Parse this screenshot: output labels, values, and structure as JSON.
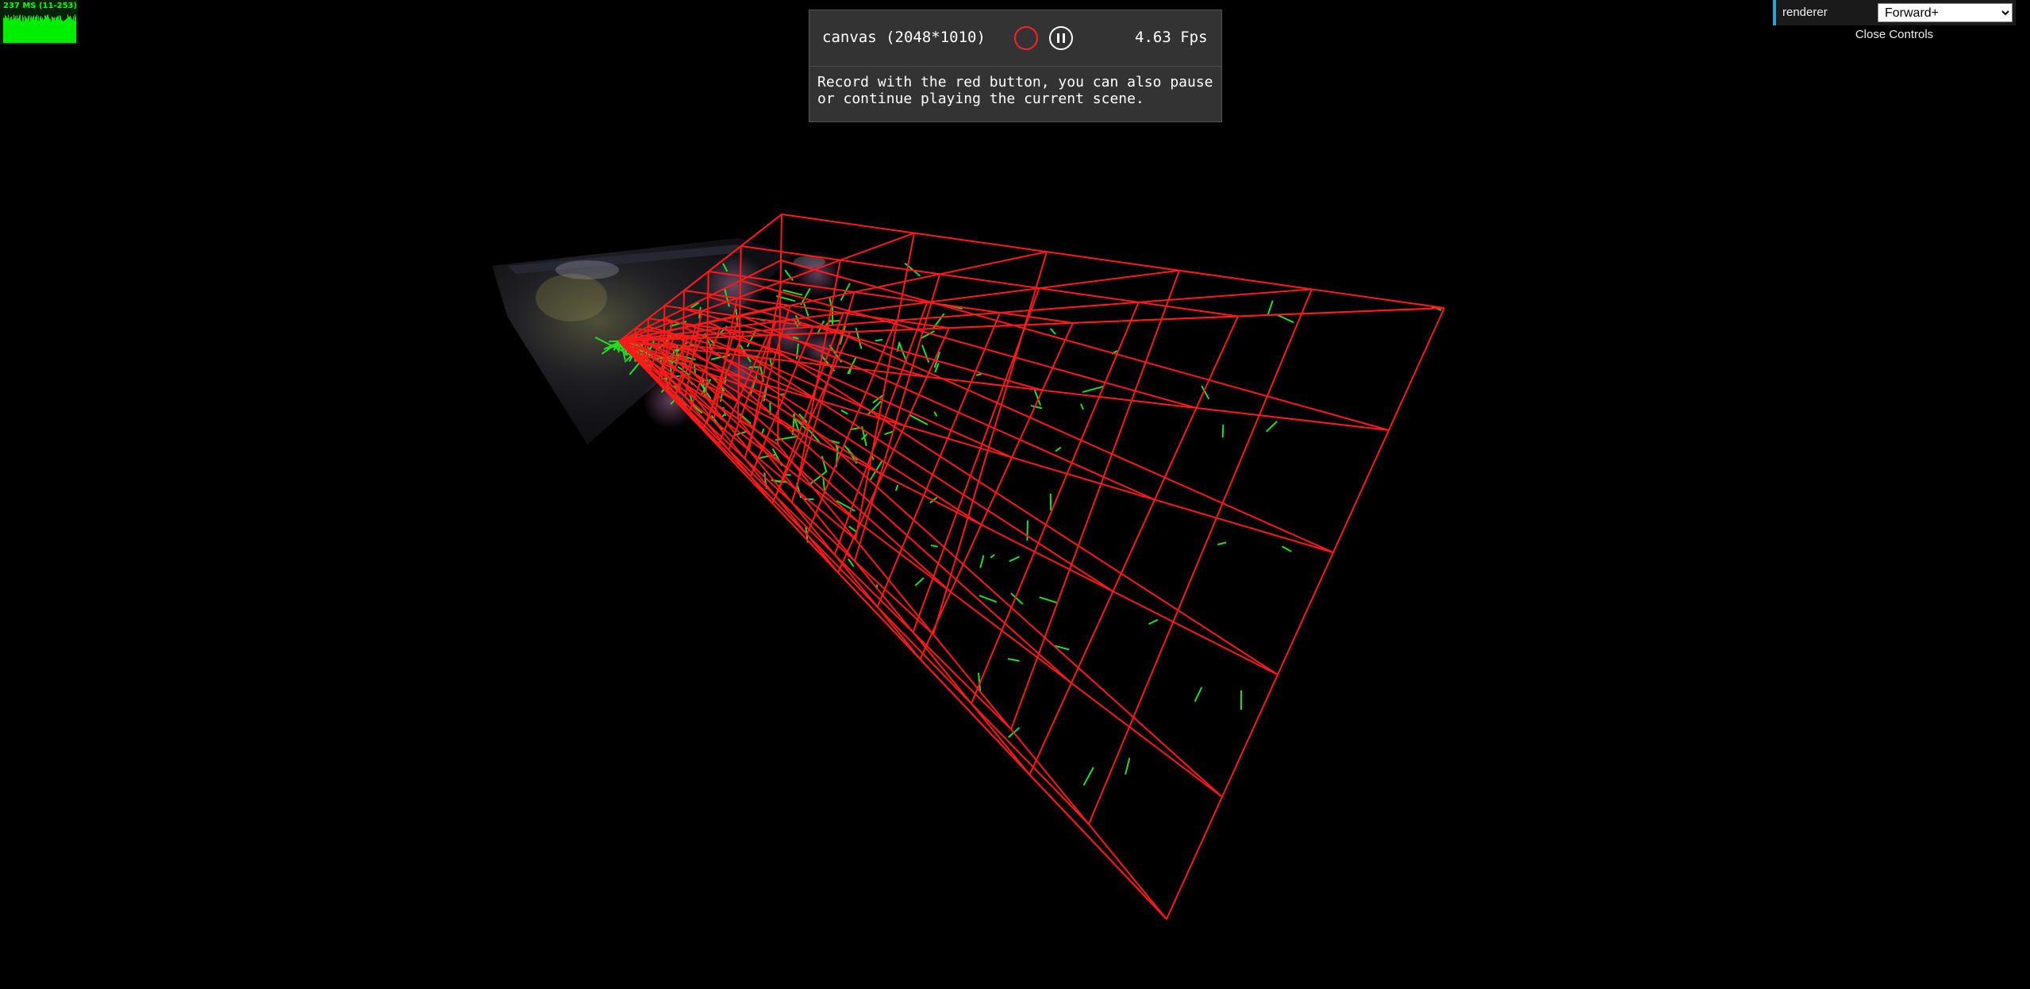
{
  "stats": {
    "text": "237 MS (11-253)",
    "graph_color": "#00ff00",
    "background_color": "#002200"
  },
  "recorder": {
    "canvas_info": "canvas (2048*1010)",
    "fps": "4.63 Fps",
    "description": "Record with the red button, you can also pause or continue playing the current scene.",
    "record_icon": "record-circle-icon",
    "pause_icon": "pause-icon",
    "record_color": "#ff2222"
  },
  "controls": {
    "renderer_label": "renderer",
    "renderer_value": "Forward+",
    "renderer_options": [
      "Forward+"
    ],
    "close_label": "Close Controls"
  },
  "scene": {
    "background_color": "#000000",
    "frustum_color": "#ff1a1a",
    "light_helper_color": "#22dd22"
  }
}
